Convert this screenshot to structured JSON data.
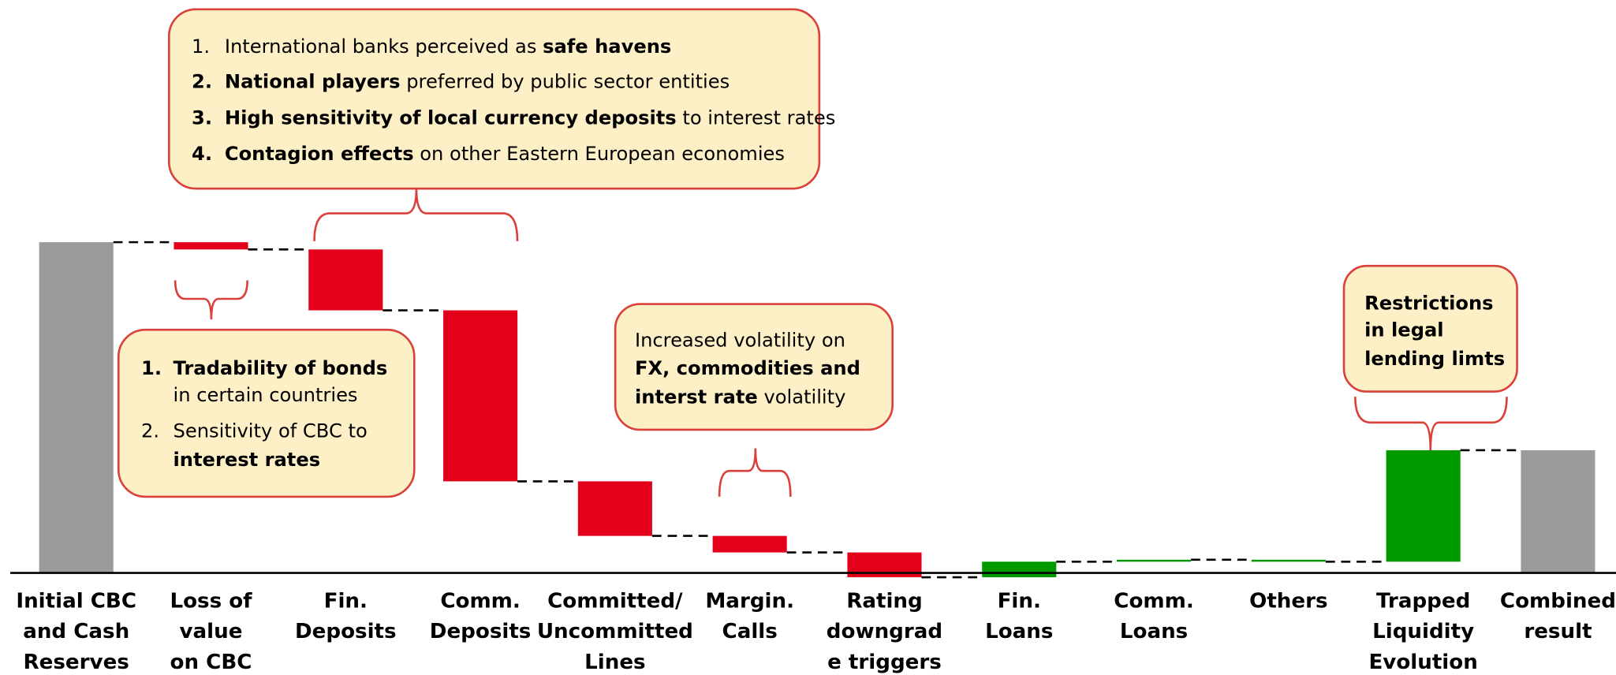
{
  "chart_data": {
    "type": "waterfall",
    "categories": [
      [
        "Initial CBC",
        "and Cash",
        "Reserves"
      ],
      [
        "Loss of",
        "value",
        "on CBC"
      ],
      [
        "Fin.",
        "Deposits"
      ],
      [
        "Comm.",
        "Deposits"
      ],
      [
        "Committed/",
        "Uncommitted",
        "Lines"
      ],
      [
        "Margin.",
        "Calls"
      ],
      [
        "Rating",
        "downgrad",
        "e triggers"
      ],
      [
        "Fin.",
        "Loans"
      ],
      [
        "Comm.",
        "Loans"
      ],
      [
        "Others"
      ],
      [
        "Trapped",
        "Liquidity",
        "Evolution"
      ],
      [
        "Combined",
        "result"
      ]
    ],
    "values": [
      100,
      -2.2,
      -18.4,
      -51.7,
      -16.5,
      -5.0,
      -7.5,
      4.7,
      0.6,
      -0.6,
      33.7,
      37.1
    ],
    "totals": [
      true,
      false,
      false,
      false,
      false,
      false,
      false,
      false,
      false,
      false,
      false,
      true
    ],
    "colors": [
      "#9b9b9b",
      "#e2001a",
      "#e2001a",
      "#e2001a",
      "#e2001a",
      "#e2001a",
      "#e2001a",
      "#009a00",
      "#009a00",
      "#009a00",
      "#009a00",
      "#9b9b9b"
    ],
    "annotations": [
      {
        "lines": [
          {
            "marker": "1.",
            "runs": [
              {
                "text": "International banks perceived as ",
                "bold": false
              },
              {
                "text": "safe havens",
                "bold": true
              }
            ]
          },
          {
            "marker": "2.",
            "runs": [
              {
                "text": "National players",
                "bold": true
              },
              {
                "text": " preferred by public sector entities",
                "bold": false
              }
            ]
          },
          {
            "marker": "3.",
            "runs": [
              {
                "text": "High sensitivity of local currency deposits",
                "bold": true
              },
              {
                "text": " to interest rates",
                "bold": false
              }
            ]
          },
          {
            "marker": "4.",
            "runs": [
              {
                "text": "Contagion effects",
                "bold": true
              },
              {
                "text": " on other Eastern European economies",
                "bold": false
              }
            ]
          }
        ]
      },
      {
        "lines": [
          {
            "marker": "1.",
            "runs": [
              {
                "text": "Tradability of bonds",
                "bold": true
              }
            ]
          },
          {
            "runs": [
              {
                "text": "in certain countries",
                "bold": false
              }
            ]
          },
          {
            "marker": "2.",
            "runs": [
              {
                "text": "Sensitivity of CBC to",
                "bold": false
              }
            ]
          },
          {
            "runs": [
              {
                "text": "interest rates",
                "bold": true
              }
            ]
          }
        ]
      },
      {
        "lines": [
          {
            "runs": [
              {
                "text": "Increased volatility on",
                "bold": false
              }
            ]
          },
          {
            "runs": [
              {
                "text": "FX, commodities and",
                "bold": true
              }
            ]
          },
          {
            "runs": [
              {
                "text": "interst rate",
                "bold": true
              },
              {
                "text": " volatility",
                "bold": false
              }
            ]
          }
        ]
      },
      {
        "lines": [
          {
            "runs": [
              {
                "text": "Restrictions",
                "bold": true
              }
            ]
          },
          {
            "runs": [
              {
                "text": "in legal",
                "bold": true
              }
            ]
          },
          {
            "runs": [
              {
                "text": "lending limts",
                "bold": true
              }
            ]
          }
        ]
      }
    ]
  }
}
